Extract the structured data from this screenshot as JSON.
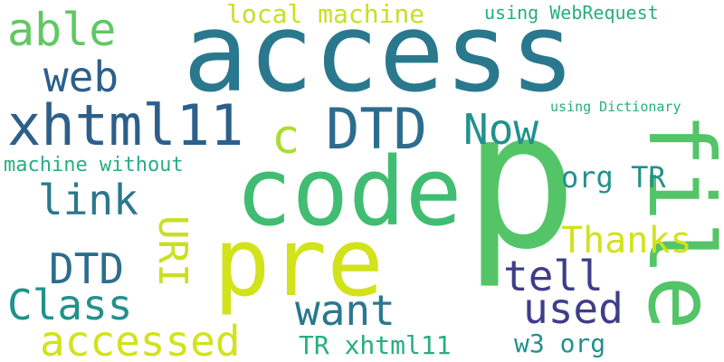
{
  "colors": {
    "background": "#ffffff",
    "teal_dark": "#2a788e",
    "blue_dark": "#2c5f8a",
    "green_bright": "#53c568",
    "yellow_green": "#d2e21b",
    "teal": "#21918c",
    "purple_dark": "#3f3d8a",
    "yellow": "#c8e020",
    "green_teal": "#27ad81"
  },
  "words": [
    {
      "text": "access"
    },
    {
      "text": "p"
    },
    {
      "text": "code"
    },
    {
      "text": "pre"
    },
    {
      "text": "file"
    },
    {
      "text": "xhtml11"
    },
    {
      "text": "DTD"
    },
    {
      "text": "able"
    },
    {
      "text": "local machine"
    },
    {
      "text": "using WebRequest"
    },
    {
      "text": "web"
    },
    {
      "text": "c"
    },
    {
      "text": "Now"
    },
    {
      "text": "using Dictionary"
    },
    {
      "text": "machine without"
    },
    {
      "text": "org TR"
    },
    {
      "text": "link"
    },
    {
      "text": "URI"
    },
    {
      "text": "Thanks"
    },
    {
      "text": "DTD"
    },
    {
      "text": "tell"
    },
    {
      "text": "Class"
    },
    {
      "text": "want"
    },
    {
      "text": "used"
    },
    {
      "text": "accessed"
    },
    {
      "text": "TR xhtml11"
    },
    {
      "text": "w3 org"
    }
  ]
}
